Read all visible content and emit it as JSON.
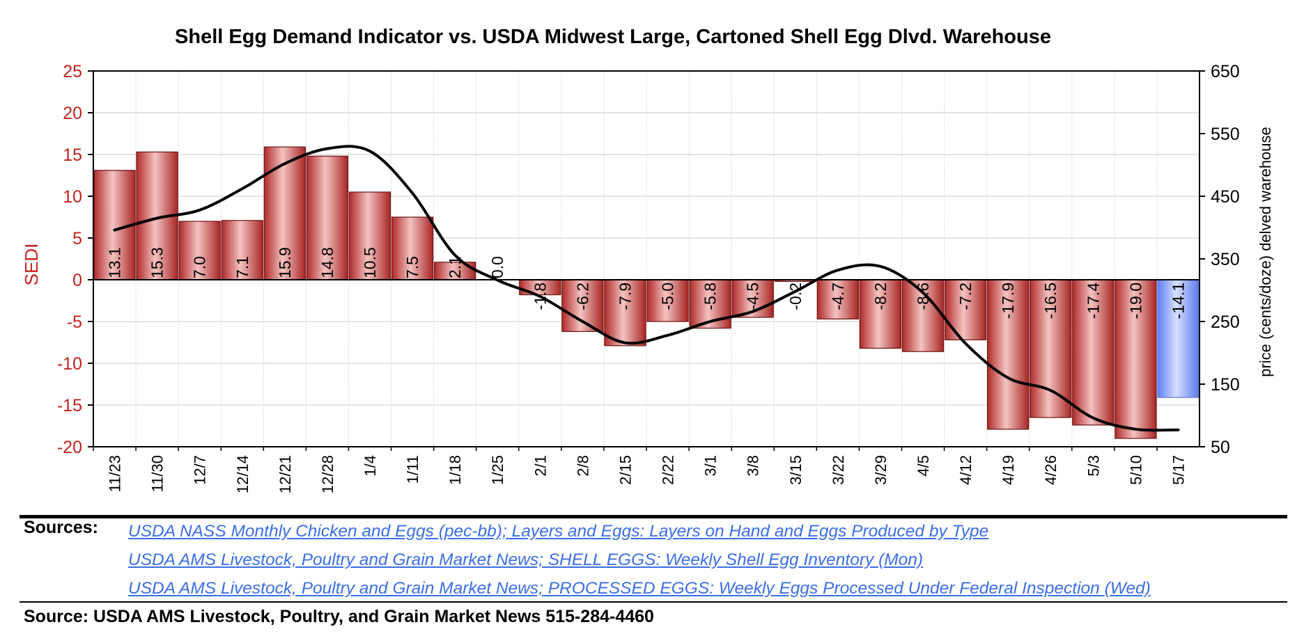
{
  "chart_data": {
    "type": "bar",
    "title": "Shell Egg Demand Indicator vs. USDA Midwest Large, Cartoned Shell Egg Dlvd. Warehouse",
    "categories": [
      "11/23",
      "11/30",
      "12/7",
      "12/14",
      "12/21",
      "12/28",
      "1/4",
      "1/11",
      "1/18",
      "1/25",
      "2/1",
      "2/8",
      "2/15",
      "2/22",
      "3/1",
      "3/8",
      "3/15",
      "3/22",
      "3/29",
      "4/5",
      "4/12",
      "4/19",
      "4/26",
      "5/3",
      "5/10",
      "5/17"
    ],
    "series": [
      {
        "name": "SEDI",
        "type": "bar",
        "axis": "left",
        "values": [
          13.1,
          15.3,
          7.0,
          7.1,
          15.9,
          14.8,
          10.5,
          7.5,
          2.1,
          0.0,
          -1.8,
          -6.2,
          -7.9,
          -5.0,
          -5.8,
          -4.5,
          -0.2,
          -4.7,
          -8.2,
          -8.6,
          -7.2,
          -17.9,
          -16.5,
          -17.4,
          -19.0,
          -14.1
        ],
        "labels": [
          "13.1",
          "15.3",
          "7.0",
          "7.1",
          "15.9",
          "14.8",
          "10.5",
          "7.5",
          "2.1",
          "0.0",
          "-1.8",
          "-6.2",
          "-7.9",
          "-5.0",
          "-5.8",
          "-4.5",
          "-0.2",
          "-4.7",
          "-8.2",
          "-8.6",
          "-7.2",
          "-17.9",
          "-16.5",
          "-17.4",
          "-19.0",
          "-14.1"
        ],
        "color": "#b8312f",
        "highlight_color": "#6f8ff5"
      },
      {
        "type": "line",
        "axis": "right",
        "smooth": true,
        "values": [
          396,
          415,
          428,
          462,
          502,
          526,
          522,
          455,
          356,
          316,
          290,
          250,
          216,
          228,
          250,
          266,
          298,
          332,
          338,
          296,
          215,
          160,
          140,
          96,
          78,
          77
        ],
        "color": "#000000"
      }
    ],
    "ylabel": "SEDI",
    "ylim": [
      -20,
      25
    ],
    "yticks": [
      "25",
      "20",
      "15",
      "10",
      "5",
      "0",
      "-5",
      "-10",
      "-15",
      "-20"
    ],
    "y2label": "price (cents/doze) delved warehouse",
    "y2lim": [
      50,
      650
    ],
    "y2ticks": [
      "650",
      "550",
      "450",
      "350",
      "250",
      "150",
      "50"
    ],
    "grid": true,
    "colors": {
      "left_axis": "#c4221f",
      "bar": "#b8312f",
      "highlight": "#6f8ff5",
      "line": "#000000"
    }
  },
  "sources": {
    "label": "Sources:",
    "links": [
      "USDA NASS Monthly Chicken and Eggs  (pec-bb); Layers and Eggs: Layers on Hand and Eggs Produced by Type",
      "USDA AMS Livestock, Poultry and Grain Market News; SHELL EGGS: Weekly Shell Egg Inventory (Mon)",
      "USDA AMS Livestock, Poultry and Grain Market News; PROCESSED EGGS: Weekly Eggs Processed Under Federal Inspection (Wed)"
    ],
    "link_color": "#3a6ee8"
  },
  "footer": "Source: USDA AMS Livestock, Poultry, and Grain Market News 515-284-4460"
}
